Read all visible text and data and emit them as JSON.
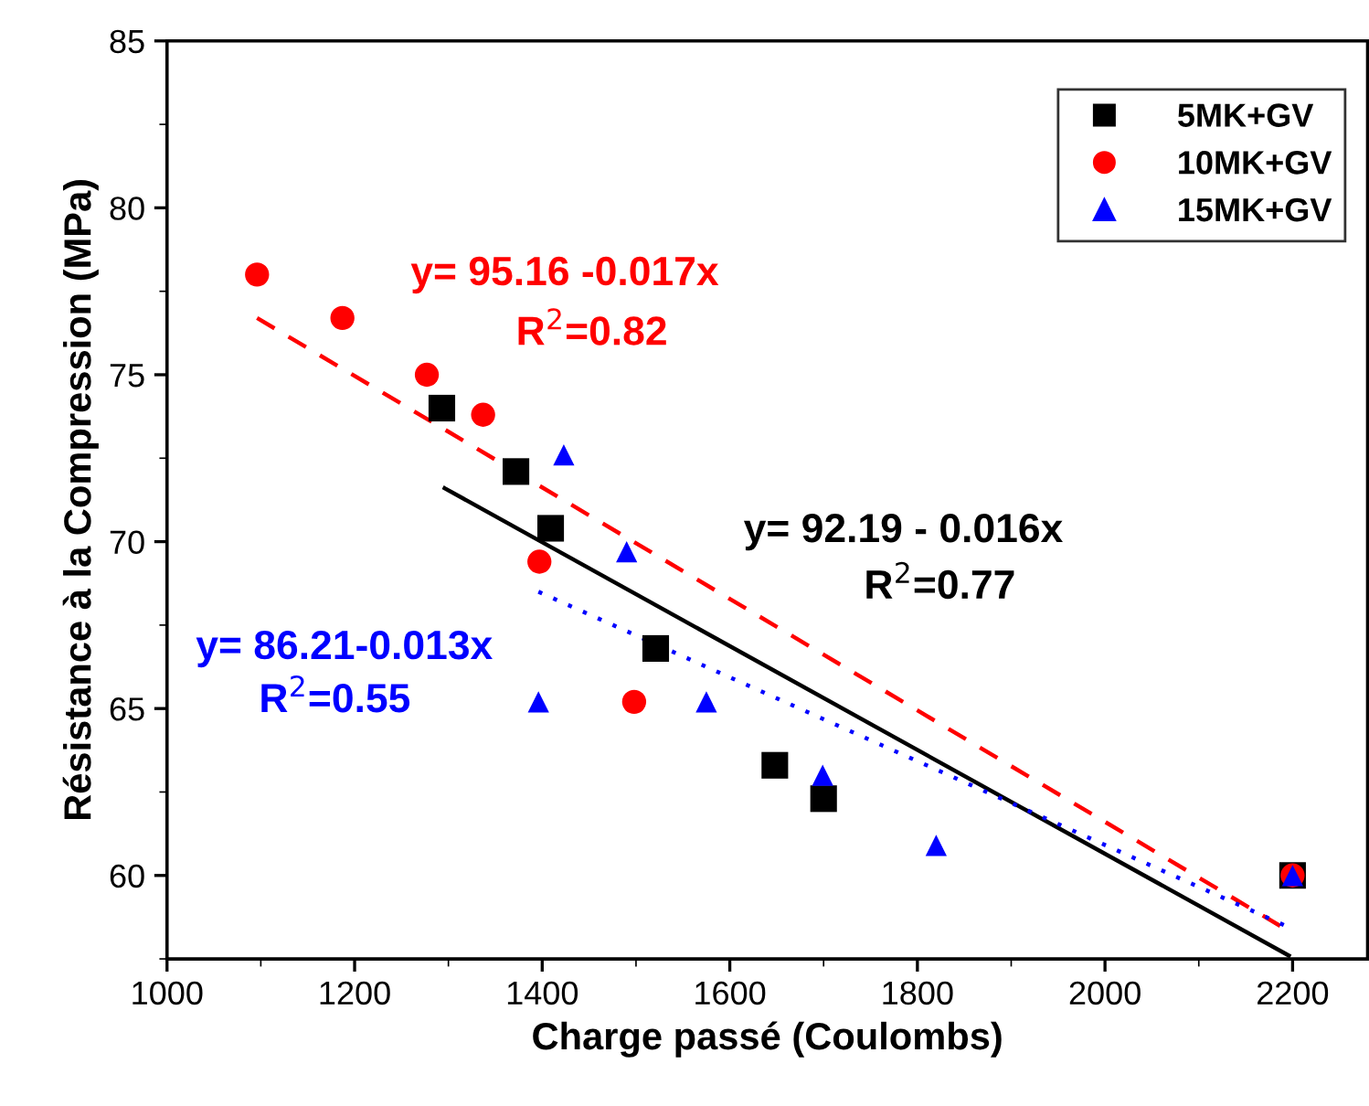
{
  "chart_data": {
    "type": "scatter",
    "xlabel": "Charge passé (Coulombs)",
    "ylabel": "Résistance à la Compression (MPa)",
    "xlim": [
      1000,
      2280
    ],
    "xticks": [
      1000,
      1200,
      1400,
      1600,
      1800,
      2000,
      2200
    ],
    "ylim": [
      57.5,
      85
    ],
    "yticks": [
      60,
      65,
      70,
      75,
      80,
      85
    ],
    "grid": false,
    "legend": "top right",
    "series": [
      {
        "name": "5MK+GV",
        "color": "#000000",
        "marker": "square",
        "x": [
          1293,
          1372,
          1409,
          1521,
          1648,
          1700,
          2200
        ],
        "values": [
          74.0,
          72.1,
          70.4,
          66.8,
          63.3,
          62.3,
          60.0
        ]
      },
      {
        "name": "10MK+GV",
        "color": "#ff0000",
        "marker": "circle",
        "x": [
          1096,
          1187,
          1277,
          1337,
          1397,
          1498,
          2200
        ],
        "values": [
          78.0,
          76.7,
          75.0,
          73.8,
          69.4,
          65.2,
          60.0
        ]
      },
      {
        "name": "15MK+GV",
        "color": "#0000ff",
        "marker": "triangle",
        "x": [
          1423,
          1490,
          1396,
          1575,
          1699,
          1820,
          2200
        ],
        "values": [
          72.6,
          69.7,
          65.2,
          65.2,
          63.0,
          60.9,
          60.0
        ]
      },
      {
        "type": "line",
        "color": "#ff0000",
        "line_style": "dashed",
        "x": [
          1096,
          2192
        ],
        "values": [
          76.7,
          58.4
        ]
      },
      {
        "type": "line",
        "color": "#000000",
        "line_style": "solid",
        "x": [
          1296,
          2196
        ],
        "values": [
          71.6,
          57.6
        ]
      },
      {
        "type": "line",
        "color": "#0000ff",
        "line_style": "dotted",
        "x": [
          1396,
          2192
        ],
        "values": [
          68.5,
          58.5
        ]
      }
    ],
    "annotations": [
      "y= 95.16 -0.017x",
      "R$^{2}$=0.82",
      "y= 92.19 - 0.016x",
      "R$^{2}$=0.77",
      "y= 86.21-0.013x",
      "R$^{2}$=0.55"
    ]
  }
}
